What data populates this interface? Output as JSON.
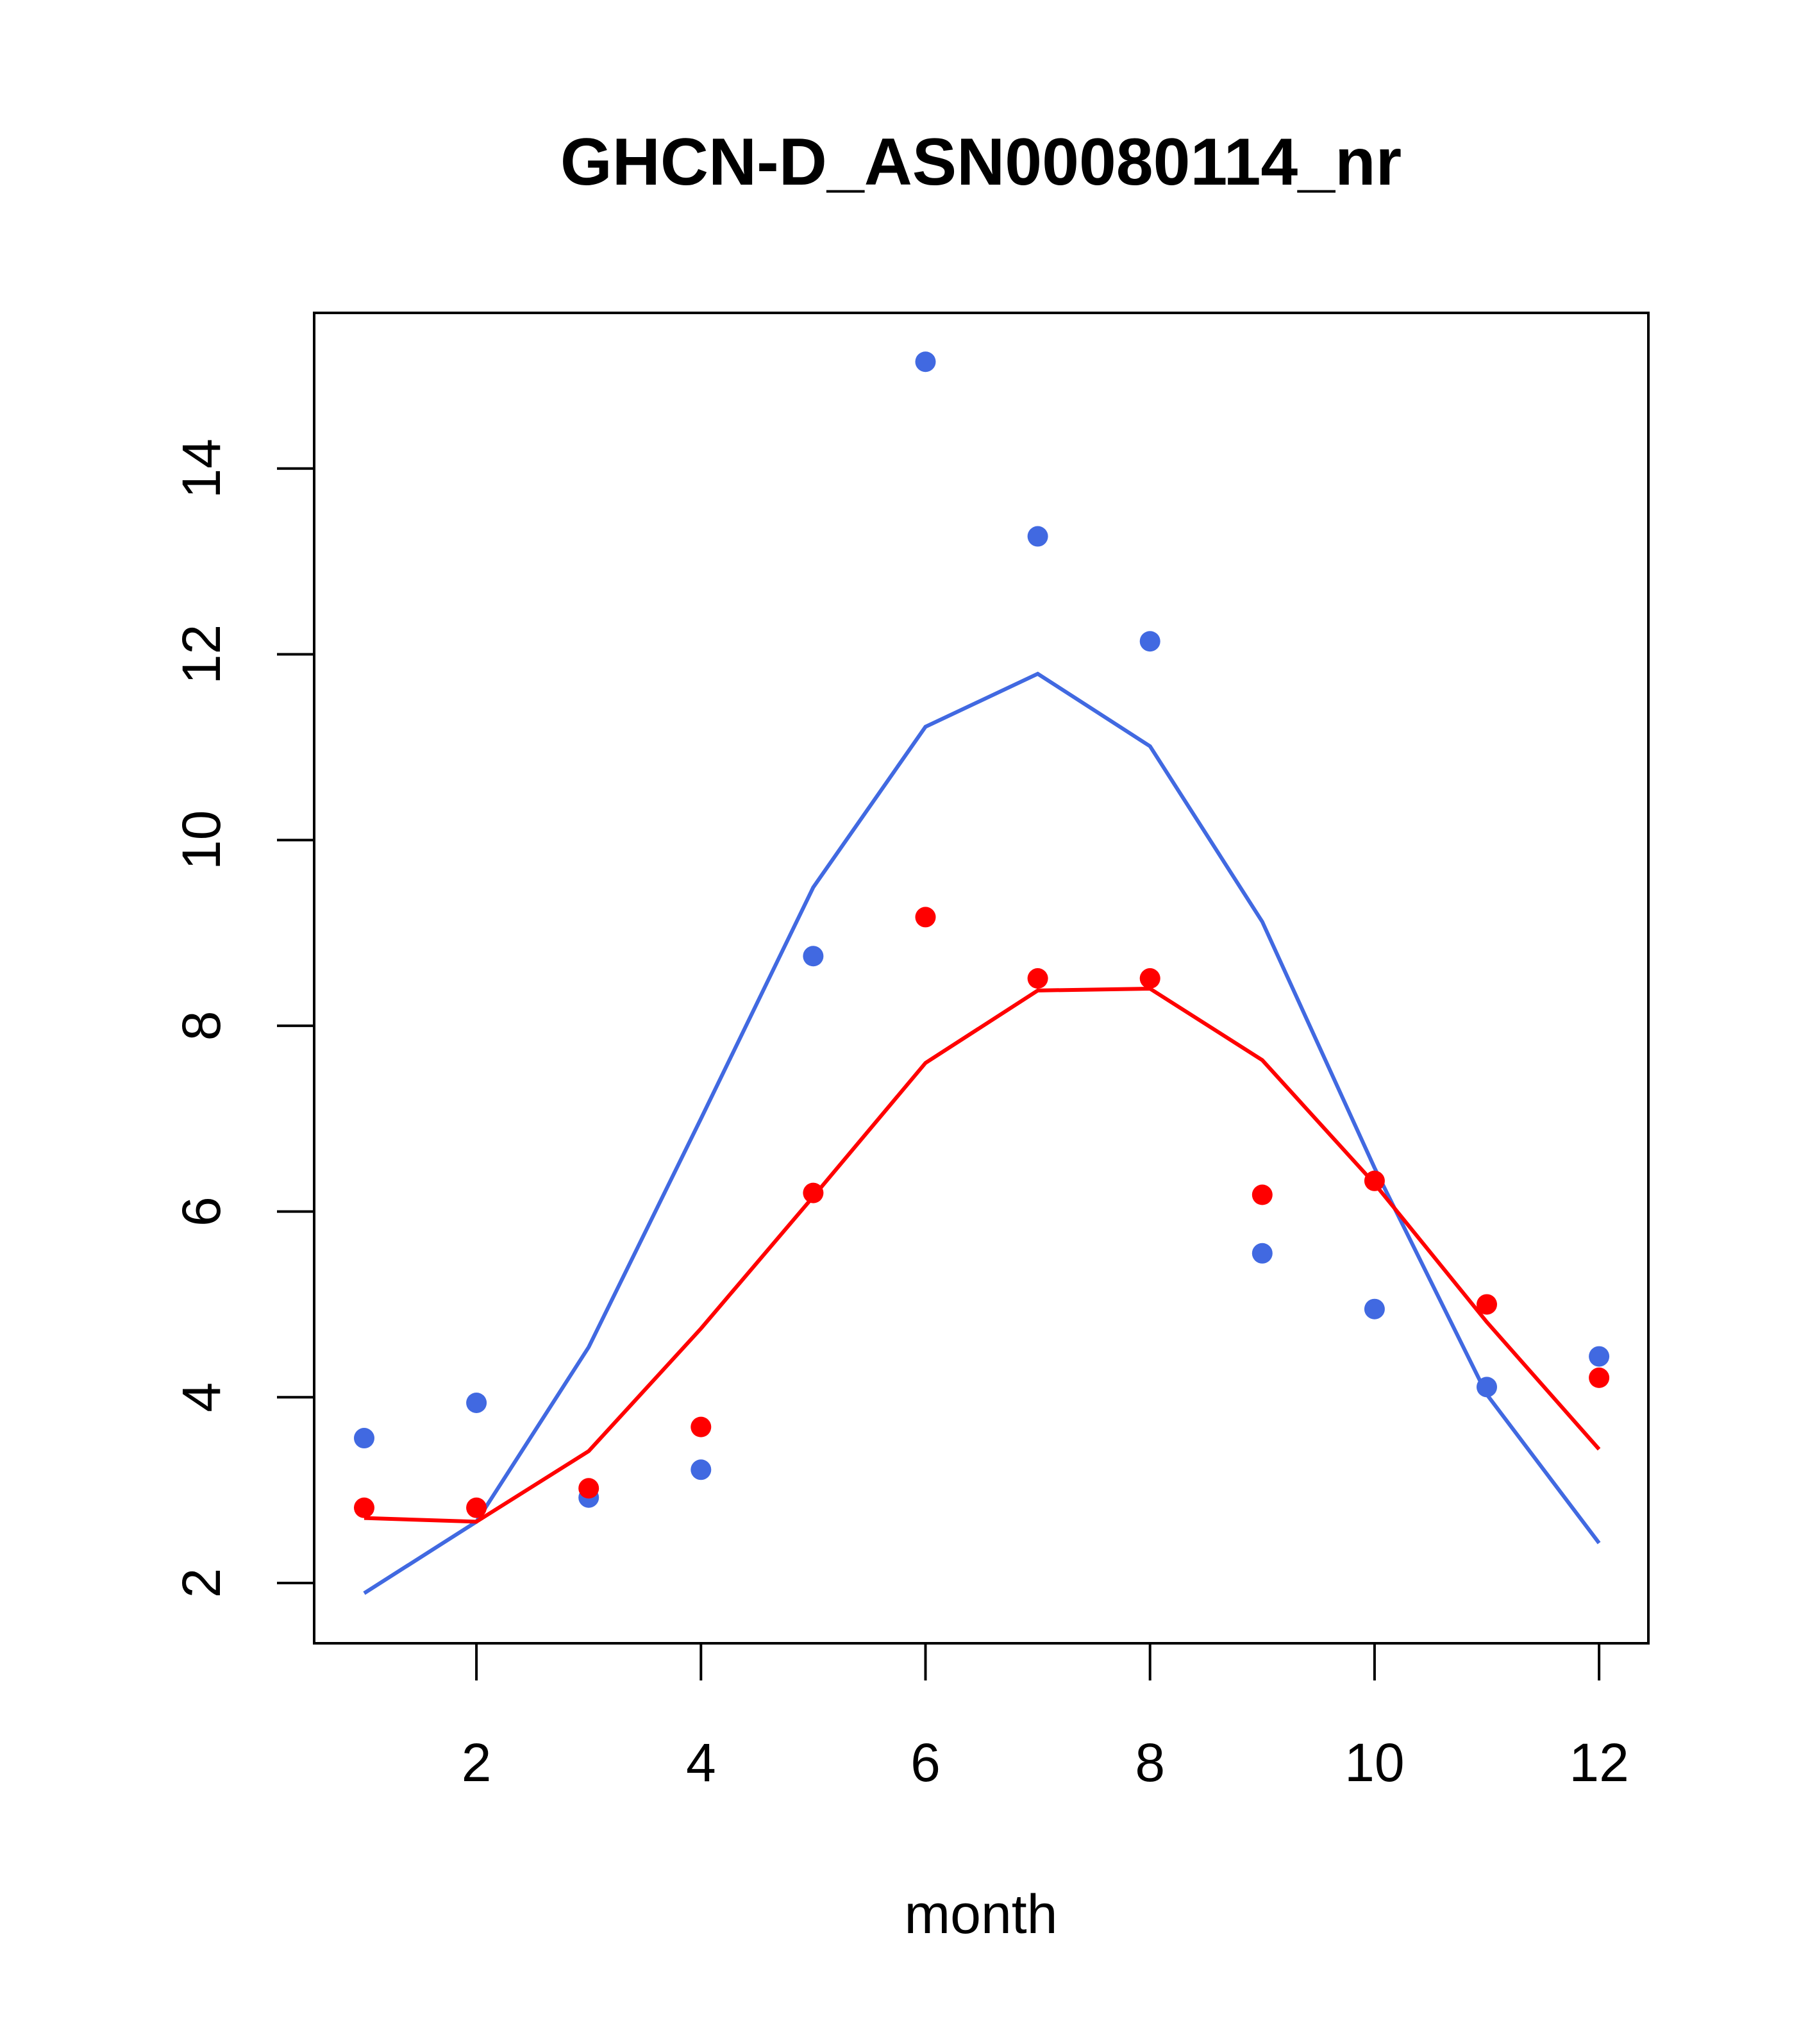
{
  "chart_data": {
    "type": "scatter",
    "title": "GHCN-D_ASN00080114_nr",
    "xlabel": "month",
    "ylabel": "",
    "xlim": [
      0.78,
      12.43
    ],
    "ylim": [
      1.35,
      15.65
    ],
    "xticks": [
      2,
      4,
      6,
      8,
      10,
      12
    ],
    "yticks": [
      2,
      4,
      6,
      8,
      10,
      12,
      14
    ],
    "grid": false,
    "colors": {
      "blue": "#4169E1",
      "red": "#FF0000"
    },
    "x": [
      1,
      2,
      3,
      4,
      5,
      6,
      7,
      8,
      9,
      10,
      11,
      12
    ],
    "series": [
      {
        "name": "blue points",
        "kind": "points",
        "color": "#4169E1",
        "values": [
          3.56,
          3.94,
          2.92,
          3.22,
          8.75,
          15.15,
          13.27,
          12.14,
          5.55,
          4.95,
          4.11,
          4.44
        ]
      },
      {
        "name": "red points",
        "kind": "points",
        "color": "#FF0000",
        "values": [
          2.81,
          2.81,
          3.02,
          3.68,
          6.2,
          9.17,
          8.51,
          8.51,
          6.18,
          6.33,
          5.0,
          4.21
        ]
      },
      {
        "name": "blue line",
        "kind": "line",
        "color": "#4169E1",
        "values": [
          1.89,
          2.66,
          4.54,
          7.0,
          9.49,
          11.22,
          11.79,
          11.01,
          9.12,
          6.47,
          4.03,
          2.43
        ]
      },
      {
        "name": "red line",
        "kind": "line",
        "color": "#FF0000",
        "values": [
          2.7,
          2.66,
          3.42,
          4.74,
          6.16,
          7.6,
          8.38,
          8.4,
          7.63,
          6.3,
          4.81,
          3.44
        ]
      }
    ]
  }
}
